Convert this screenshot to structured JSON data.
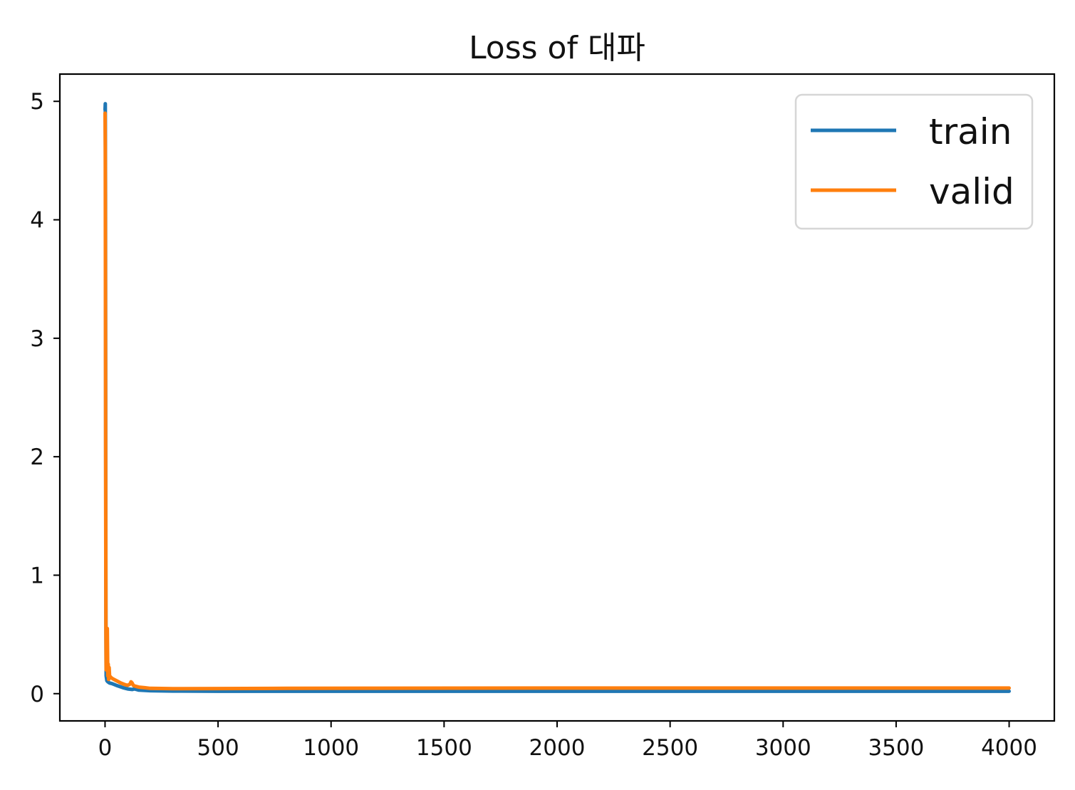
{
  "chart_data": {
    "type": "line",
    "title": "Loss of 대파",
    "xlabel": "",
    "ylabel": "",
    "xlim": [
      -200,
      4200
    ],
    "ylim": [
      -0.23,
      5.23
    ],
    "xticks": [
      0,
      500,
      1000,
      1500,
      2000,
      2500,
      3000,
      3500,
      4000
    ],
    "yticks": [
      0,
      1,
      2,
      3,
      4,
      5
    ],
    "grid": false,
    "legend": {
      "placement": "top-right"
    },
    "series": [
      {
        "name": "train",
        "color": "#1f77b4",
        "x": [
          0,
          1,
          2,
          3,
          4,
          5,
          8,
          12,
          20,
          30,
          50,
          80,
          100,
          120,
          130,
          150,
          200,
          300,
          500,
          800,
          1200,
          2000,
          3000,
          4000
        ],
        "y": [
          4.93,
          4.98,
          4.2,
          2.0,
          0.6,
          0.15,
          0.11,
          0.1,
          0.09,
          0.085,
          0.07,
          0.05,
          0.04,
          0.035,
          0.04,
          0.03,
          0.025,
          0.022,
          0.02,
          0.02,
          0.02,
          0.02,
          0.02,
          0.02
        ]
      },
      {
        "name": "valid",
        "color": "#ff7f0e",
        "x": [
          0,
          1,
          2,
          3,
          4,
          5,
          7,
          9,
          10,
          12,
          14,
          16,
          18,
          20,
          25,
          30,
          40,
          50,
          70,
          90,
          100,
          110,
          115,
          120,
          125,
          130,
          140,
          150,
          175,
          200,
          300,
          500,
          800,
          1200,
          2000,
          3000,
          4000
        ],
        "y": [
          4.9,
          4.6,
          3.0,
          1.5,
          0.5,
          0.2,
          0.45,
          0.3,
          0.55,
          0.15,
          0.25,
          0.12,
          0.22,
          0.15,
          0.14,
          0.13,
          0.12,
          0.11,
          0.09,
          0.075,
          0.07,
          0.08,
          0.1,
          0.09,
          0.07,
          0.065,
          0.06,
          0.055,
          0.05,
          0.045,
          0.042,
          0.043,
          0.045,
          0.046,
          0.047,
          0.047,
          0.047
        ]
      }
    ]
  }
}
